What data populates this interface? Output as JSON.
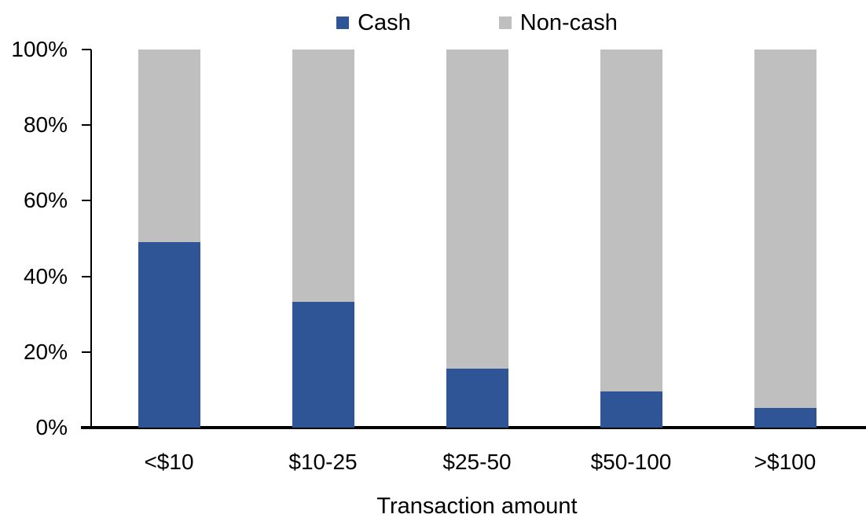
{
  "chart_data": {
    "type": "bar",
    "stacked": true,
    "percent_stacked": true,
    "title": "",
    "xlabel": "Transaction amount",
    "ylabel": "",
    "categories": [
      "<$10",
      "$10-25",
      "$25-50",
      "$50-100",
      ">$100"
    ],
    "series": [
      {
        "name": "Cash",
        "color": "#2F5597",
        "values": [
          49.0,
          33.3,
          15.5,
          9.5,
          5.3
        ]
      },
      {
        "name": "Non-cash",
        "color": "#BFBFBF",
        "values": [
          51.0,
          66.7,
          84.5,
          90.5,
          94.7
        ]
      }
    ],
    "ylim": [
      0,
      100
    ],
    "yticks": [
      "0%",
      "20%",
      "40%",
      "60%",
      "80%",
      "100%"
    ],
    "grid": false,
    "legend_position": "top",
    "axis_color": "#000000",
    "text_color": "#000000",
    "background_color": "#FFFFFF"
  }
}
